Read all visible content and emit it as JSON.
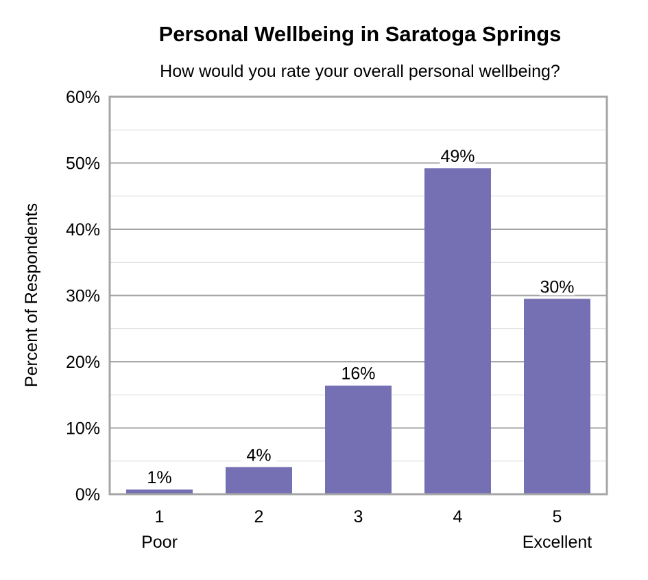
{
  "chart_data": {
    "type": "bar",
    "title": "Personal Wellbeing in Saratoga Springs",
    "subtitle": "How would you rate your overall personal wellbeing?",
    "xlabel": "",
    "ylabel": "Percent of Respondents",
    "categories": [
      "1",
      "2",
      "3",
      "4",
      "5"
    ],
    "category_sublabels": [
      "Poor",
      "",
      "",
      "",
      "Excellent"
    ],
    "values": [
      0.7,
      4.1,
      16.4,
      49.2,
      29.5
    ],
    "data_labels": [
      "1%",
      "4%",
      "16%",
      "49%",
      "30%"
    ],
    "ylim": [
      0,
      60
    ],
    "yticks": [
      "0%",
      "10%",
      "20%",
      "30%",
      "40%",
      "50%",
      "60%"
    ],
    "grid": true,
    "legend": "none",
    "bar_color": "#7570b3"
  }
}
